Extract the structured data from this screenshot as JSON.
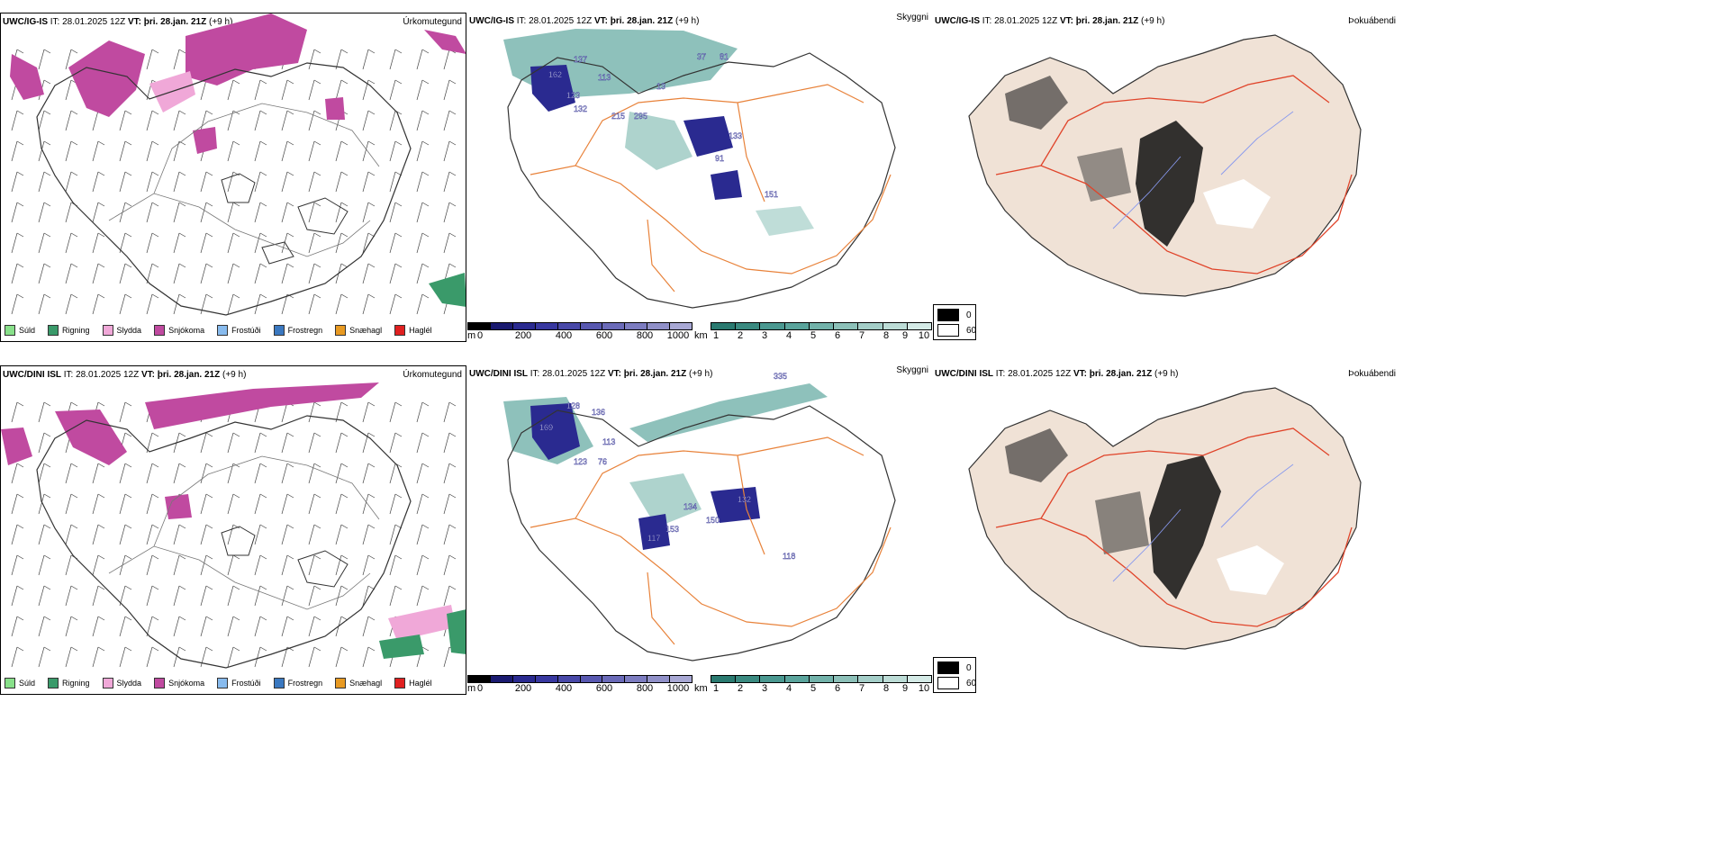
{
  "colors": {
    "coast": "#333333",
    "road": "#e8823a",
    "road_red": "#e0442a",
    "land_fog": "#f0e2d6",
    "river": "#8899ee"
  },
  "rows": [
    {
      "model": "UWC/IG-IS",
      "it_label": "IT: 28.01.2025 12Z",
      "vt_label": "VT: þri. 28.jan. 21Z",
      "offset": "(+9 h)",
      "cloud_numbers": [
        "137",
        "162",
        "123",
        "113",
        "132",
        "215",
        "295",
        "37",
        "81",
        "13",
        "133",
        "91",
        "151"
      ]
    },
    {
      "model": "UWC/DINI ISL",
      "it_label": "IT: 28.01.2025 12Z",
      "vt_label": "VT: þri. 28.jan. 21Z",
      "offset": "(+9 h)",
      "cloud_numbers": [
        "128",
        "136",
        "169",
        "113",
        "123",
        "76",
        "335",
        "132",
        "150",
        "117",
        "153",
        "134",
        "118"
      ]
    }
  ],
  "panel_fields": {
    "precip": "Úrkomutegund",
    "vis": "Skyggni",
    "fog": "Þokuábendi"
  },
  "precip_legend": [
    {
      "label": "Súld",
      "color": "#88e08a"
    },
    {
      "label": "Rigning",
      "color": "#3a9a6a"
    },
    {
      "label": "Slydda",
      "color": "#f0a8d8"
    },
    {
      "label": "Snjókoma",
      "color": "#c04aa0"
    },
    {
      "label": "Frostúði",
      "color": "#88bbee"
    },
    {
      "label": "Frostregn",
      "color": "#3a78c0"
    },
    {
      "label": "Snæhagl",
      "color": "#e89a22"
    },
    {
      "label": "Haglél",
      "color": "#e02020"
    }
  ],
  "cloud_colorbar": {
    "unit": "m",
    "ticks": [
      "0",
      "200",
      "400",
      "600",
      "800",
      "1000"
    ],
    "colors": [
      "#000000",
      "#1a1a70",
      "#2a2a90",
      "#3838a0",
      "#4848a8",
      "#5858b0",
      "#6a6ab8",
      "#7c7cc0",
      "#9090c8",
      "#a8a8d4"
    ]
  },
  "vis_colorbar": {
    "unit": "km",
    "ticks": [
      "1",
      "2",
      "3",
      "4",
      "5",
      "6",
      "7",
      "8",
      "9",
      "10"
    ],
    "colors": [
      "#2a7a70",
      "#3a8a80",
      "#4a9890",
      "#5aa49c",
      "#72b2aa",
      "#8cc0b8",
      "#a4cec8",
      "#bcdcd6",
      "#d4eae6"
    ]
  },
  "fog_legend": [
    {
      "label": "0",
      "color": "#000000"
    },
    {
      "label": "60",
      "color": "#ffffff"
    }
  ]
}
